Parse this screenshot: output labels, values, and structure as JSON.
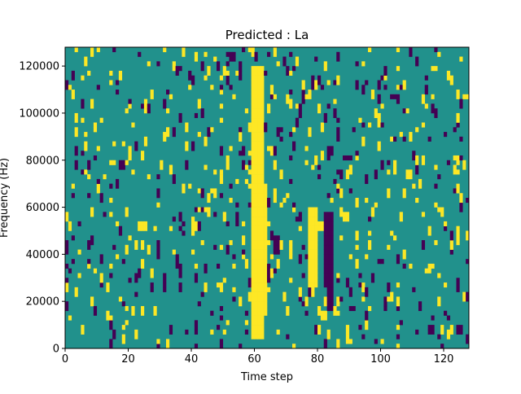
{
  "chart_data": {
    "type": "heatmap",
    "title": "Predicted : La",
    "xlabel": "Time step",
    "ylabel": "Frequency (Hz)",
    "xlim": [
      0,
      128
    ],
    "ylim": [
      0,
      128000
    ],
    "x_ticks": [
      0,
      20,
      40,
      60,
      80,
      100,
      120
    ],
    "y_ticks": [
      0,
      20000,
      40000,
      60000,
      80000,
      100000,
      120000
    ],
    "x_tick_labels": [
      "0",
      "20",
      "40",
      "60",
      "80",
      "100",
      "120"
    ],
    "y_tick_labels": [
      "0",
      "20000",
      "40000",
      "60000",
      "80000",
      "100000",
      "120000"
    ],
    "grid": false,
    "colormap": "viridis",
    "colors": {
      "background": "#21918c",
      "high": "#fde725",
      "low": "#440154"
    },
    "n_time_steps": 128,
    "n_freq_bins": 64,
    "bin_height_hz": 2000,
    "bands": [
      {
        "value": "high",
        "t_start": 59,
        "t_end": 63,
        "f_start": 4000,
        "f_end": 120000
      },
      {
        "value": "high",
        "t_start": 60,
        "t_end": 64,
        "f_start": 14000,
        "f_end": 70000
      },
      {
        "value": "high",
        "t_start": 77,
        "t_end": 80,
        "f_start": 26000,
        "f_end": 60000
      },
      {
        "value": "low",
        "t_start": 82,
        "t_end": 85,
        "f_start": 26000,
        "f_end": 58000
      },
      {
        "value": "low",
        "t_start": 83,
        "t_end": 85,
        "f_start": 16000,
        "f_end": 26000
      },
      {
        "value": "low",
        "t_start": 66,
        "t_end": 68,
        "f_start": 40000,
        "f_end": 48000
      },
      {
        "value": "high",
        "t_start": 23,
        "t_end": 26,
        "f_start": 50000,
        "f_end": 54000
      },
      {
        "value": "high",
        "t_start": 108,
        "t_end": 110,
        "f_start": 72000,
        "f_end": 76000
      },
      {
        "value": "low",
        "t_start": 83,
        "t_end": 85,
        "f_start": 82000,
        "f_end": 86000
      },
      {
        "value": "high",
        "t_start": 78,
        "t_end": 82,
        "f_start": 50000,
        "f_end": 54000
      }
    ],
    "speckle_density": 0.085,
    "speckle_seed": 7
  }
}
